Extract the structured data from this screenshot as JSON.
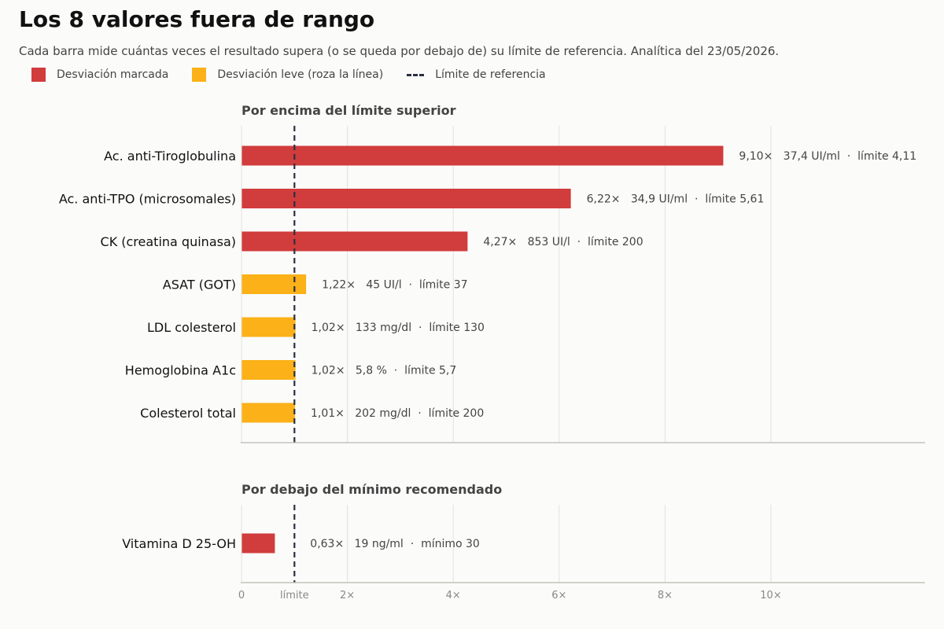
{
  "title": "Los 8 valores fuera de rango",
  "subtitle": "Cada barra mide cuántas veces el resultado supera (o se queda por debajo de) su límite de referencia. Analítica del 23/05/2026.",
  "legend": {
    "marked": "Desviación marcada",
    "mild": "Desviación leve (roza la línea)",
    "reference": "Límite de referencia"
  },
  "colors": {
    "marked": "#d13c3c",
    "mild": "#fbb117",
    "reference_line": "#2a3042",
    "grid": "#e2e2dc",
    "axis": "#b8b8ae"
  },
  "chart_data": {
    "type": "bar",
    "orientation": "horizontal",
    "x_ticks": [
      {
        "value": 0,
        "label": "0"
      },
      {
        "value": 1,
        "label": "límite"
      },
      {
        "value": 2,
        "label": "2×"
      },
      {
        "value": 4,
        "label": "4×"
      },
      {
        "value": 6,
        "label": "6×"
      },
      {
        "value": 8,
        "label": "8×"
      },
      {
        "value": 10,
        "label": "10×"
      }
    ],
    "xlim": [
      0,
      13
    ],
    "reference_value": 1,
    "panels": [
      {
        "title": "Por encima del límite superior",
        "bars": [
          {
            "category": "Ac. anti-Tiroglobulina",
            "value": 9.1,
            "severity": "marked",
            "label": "9,10×   37,4 UI/ml  ·  límite 4,11"
          },
          {
            "category": "Ac. anti-TPO (microsomales)",
            "value": 6.22,
            "severity": "marked",
            "label": "6,22×   34,9 UI/ml  ·  límite 5,61"
          },
          {
            "category": "CK (creatina quinasa)",
            "value": 4.27,
            "severity": "marked",
            "label": "4,27×   853 UI/l  ·  límite 200"
          },
          {
            "category": "ASAT (GOT)",
            "value": 1.22,
            "severity": "mild",
            "label": "1,22×   45 UI/l  ·  límite 37"
          },
          {
            "category": "LDL colesterol",
            "value": 1.02,
            "severity": "mild",
            "label": "1,02×   133 mg/dl  ·  límite 130"
          },
          {
            "category": "Hemoglobina A1c",
            "value": 1.02,
            "severity": "mild",
            "label": "1,02×   5,8 %  ·  límite 5,7"
          },
          {
            "category": "Colesterol total",
            "value": 1.01,
            "severity": "mild",
            "label": "1,01×   202 mg/dl  ·  límite 200"
          }
        ]
      },
      {
        "title": "Por debajo del mínimo recomendado",
        "bars": [
          {
            "category": "Vitamina D 25-OH",
            "value": 0.63,
            "severity": "marked",
            "label": "0,63×   19 ng/ml  ·  mínimo 30"
          }
        ]
      }
    ]
  }
}
